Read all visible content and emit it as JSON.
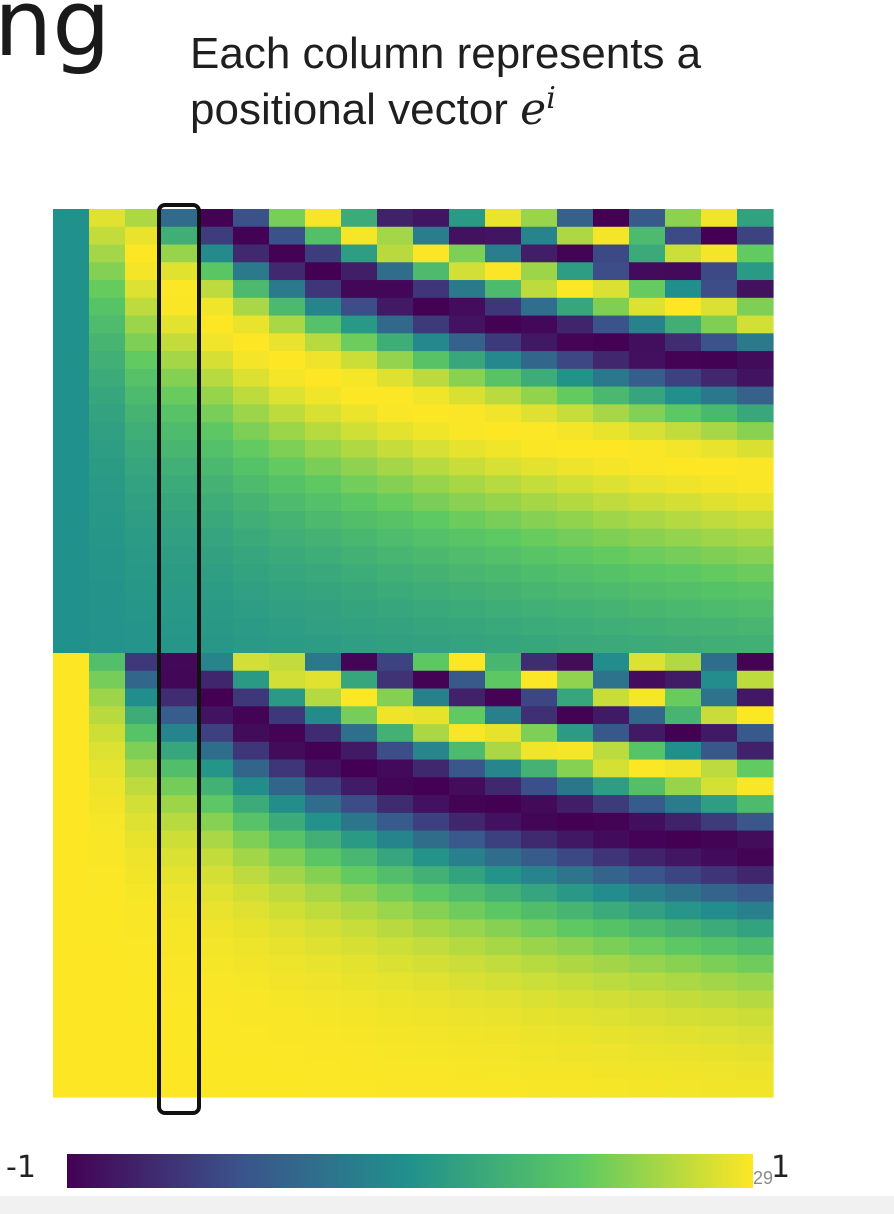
{
  "slide": {
    "title_fragment": "ng",
    "caption_line1": "Each column represents a",
    "caption_line2_text": "positional vector ",
    "caption_math_base": "e",
    "caption_math_sup": "i",
    "slide_number": "29"
  },
  "chart_data": {
    "type": "heatmap",
    "description_of_encoding": "sinusoidal positional encoding; columns are positions, rows are embedding dimensions",
    "columns": 20,
    "rows": 50,
    "highlighted_column": 3,
    "colormap": "viridis",
    "value_range": [
      -1,
      1
    ],
    "colorbar": {
      "min_label": "-1",
      "max_label": "1",
      "stops": [
        "#440154",
        "#3b528b",
        "#21918c",
        "#5ec962",
        "#fde725"
      ]
    },
    "colors": {
      "low": "#440154",
      "mid": "#21918c",
      "high": "#fde725",
      "highlight_border": "#111111"
    }
  }
}
